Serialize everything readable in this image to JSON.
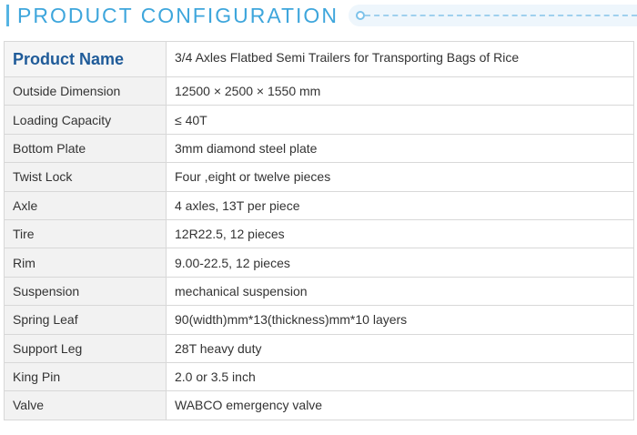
{
  "header": {
    "title": "PRODUCT CONFIGURATION"
  },
  "table": {
    "head": {
      "key": "Product Name",
      "value": "3/4 Axles Flatbed Semi Trailers for Transporting Bags of Rice"
    },
    "rows": [
      {
        "key": "Outside Dimension",
        "value": "12500 × 2500 × 1550 mm"
      },
      {
        "key": "Loading Capacity",
        "value": "≤ 40T"
      },
      {
        "key": "Bottom Plate",
        "value": "3mm diamond steel plate"
      },
      {
        "key": "Twist Lock",
        "value": "Four ,eight or twelve pieces"
      },
      {
        "key": "Axle",
        "value": "4 axles, 13T per piece"
      },
      {
        "key": "Tire",
        "value": "12R22.5, 12 pieces"
      },
      {
        "key": "Rim",
        "value": "9.00-22.5, 12 pieces"
      },
      {
        "key": "Suspension",
        "value": "mechanical suspension"
      },
      {
        "key": "Spring Leaf",
        "value": "90(width)mm*13(thickness)mm*10 layers"
      },
      {
        "key": "Support Leg",
        "value": "28T heavy duty"
      },
      {
        "key": "King Pin",
        "value": "2.0 or 3.5 inch"
      },
      {
        "key": "Valve",
        "value": "WABCO emergency valve"
      }
    ]
  }
}
